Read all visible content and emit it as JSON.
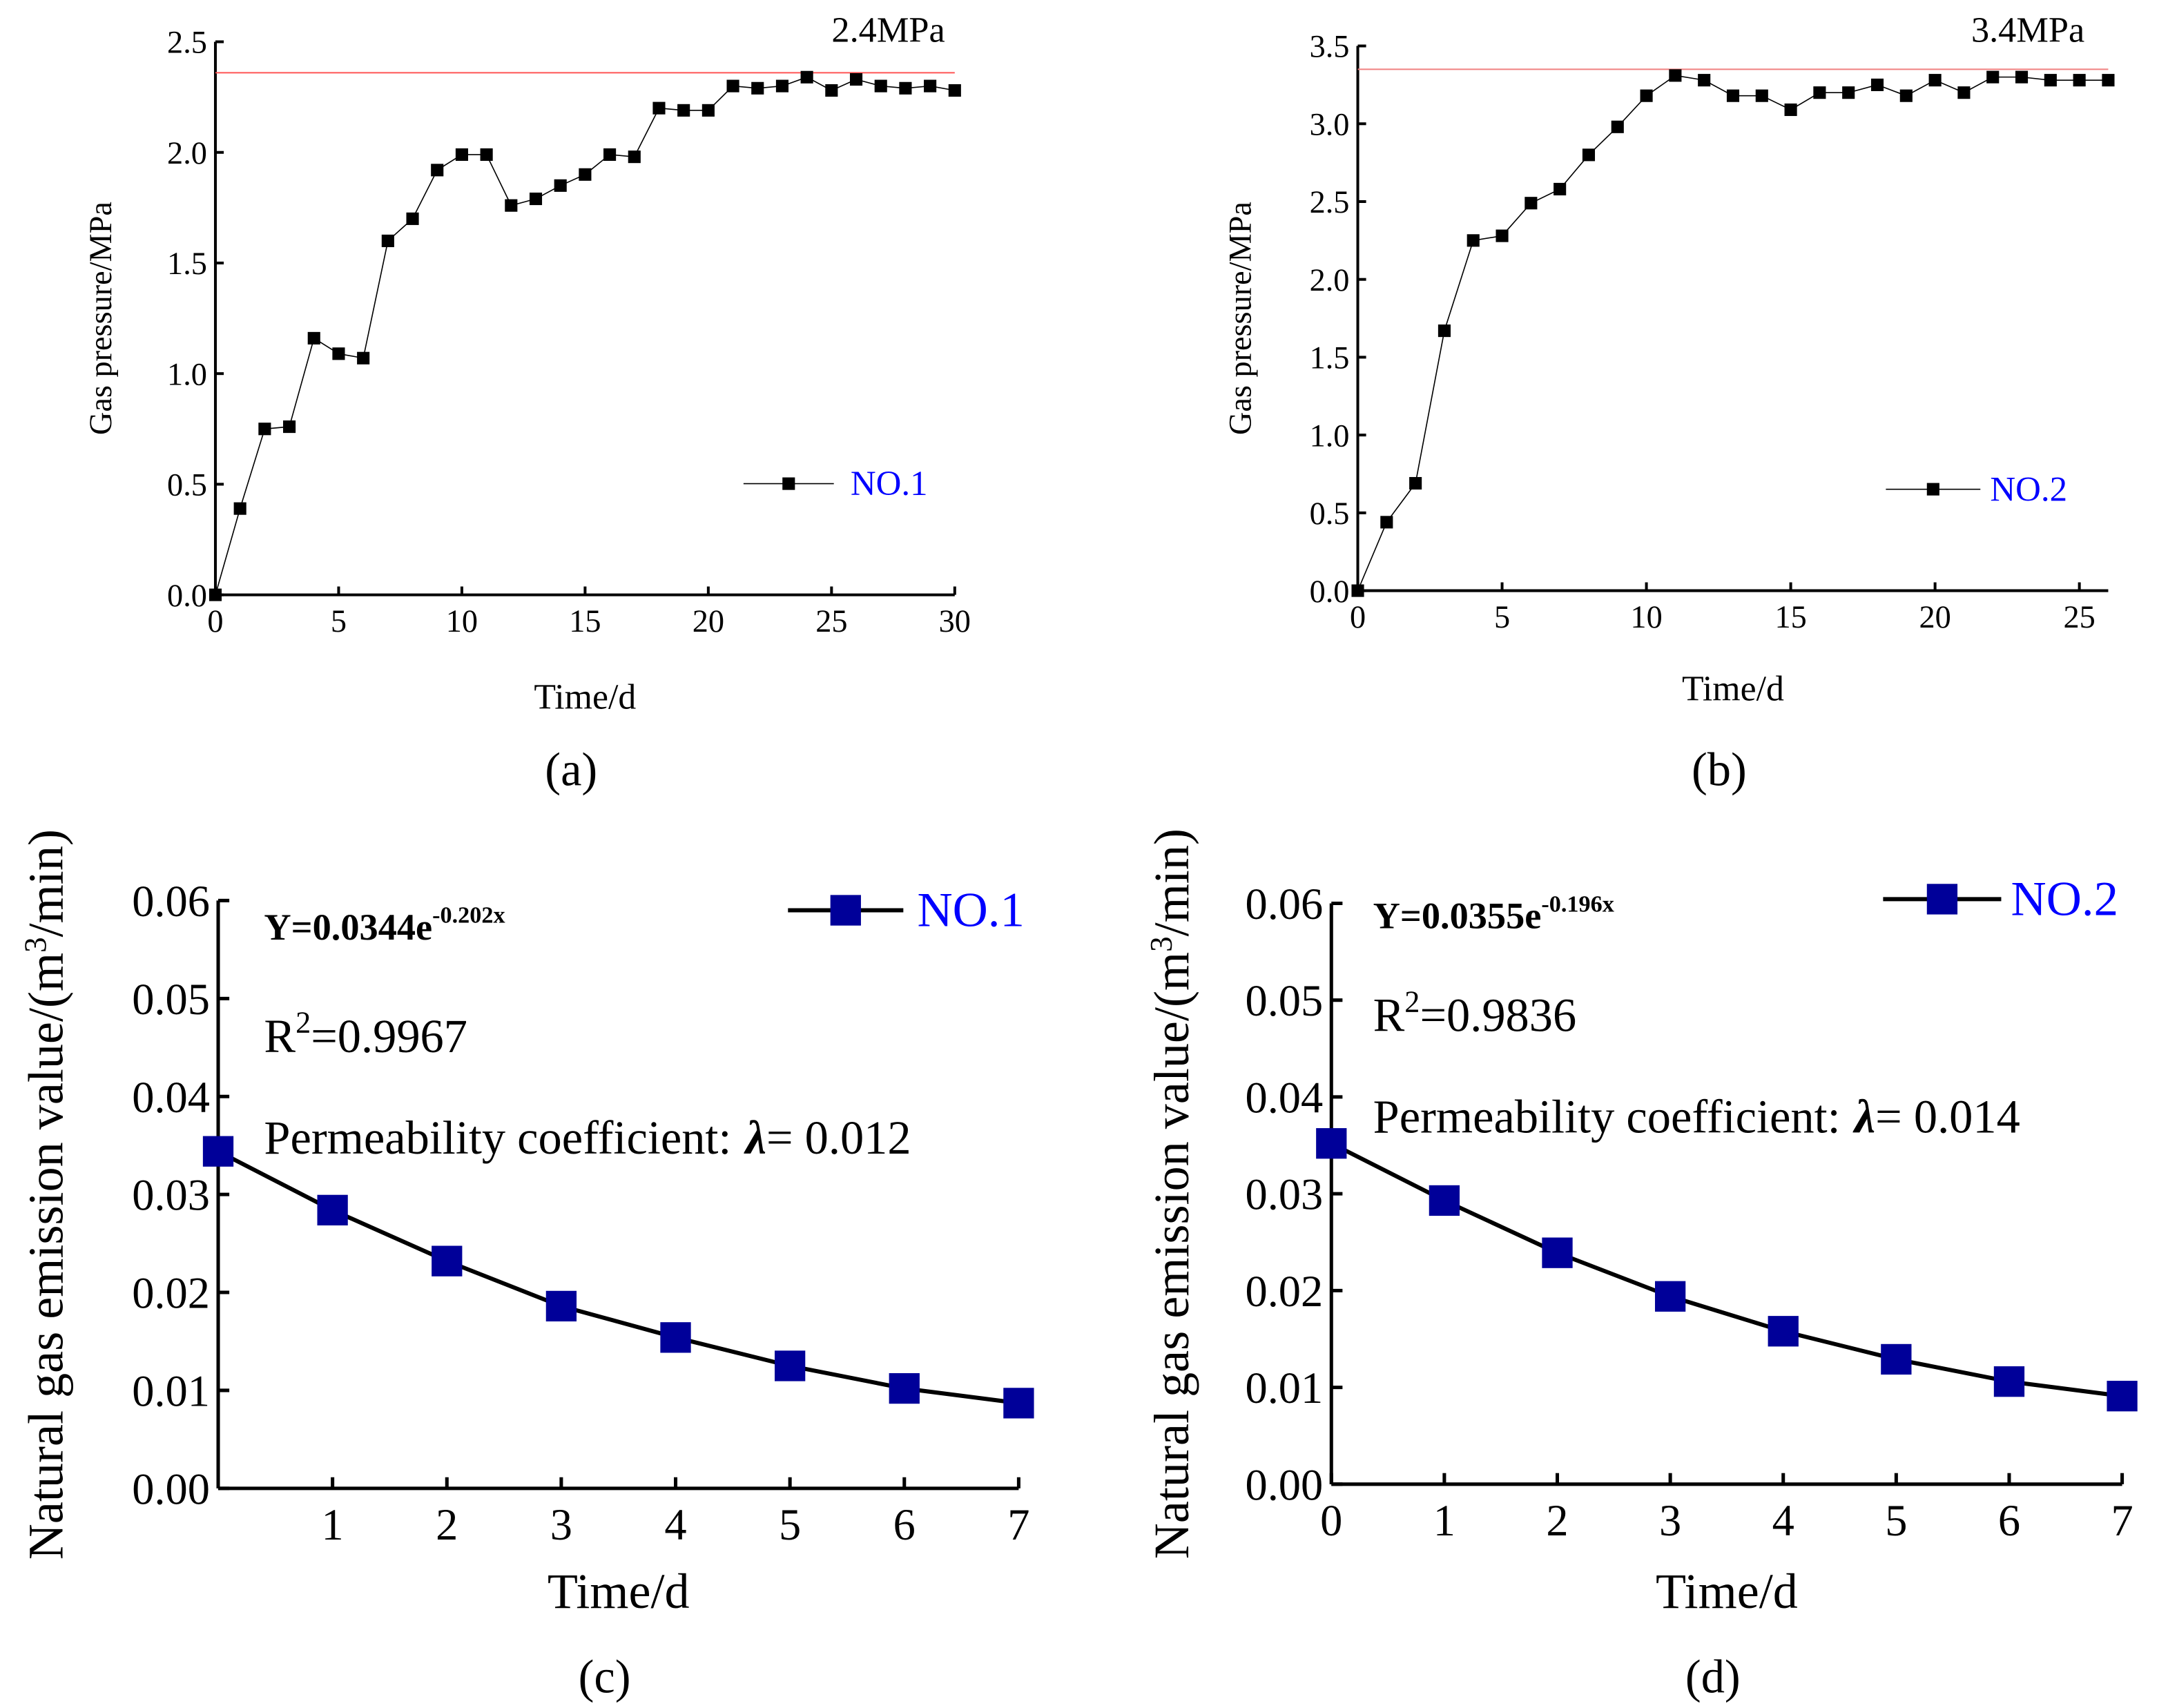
{
  "chart_data": [
    {
      "id": "a",
      "type": "line",
      "panel_label": "(a)",
      "xlabel": "Time/d",
      "ylabel": "Gas pressure/MPa",
      "xlim": [
        0,
        30
      ],
      "ylim": [
        0,
        2.5
      ],
      "xticks": [
        0,
        5,
        10,
        15,
        20,
        25,
        30
      ],
      "yticks": [
        0.0,
        0.5,
        1.0,
        1.5,
        2.0,
        2.5
      ],
      "ytick_labels": [
        "0.0",
        "0.5",
        "1.0",
        "1.5",
        "2.0",
        "2.5"
      ],
      "reference_line": {
        "value": 2.36,
        "label": "2.4MPa",
        "color": "#ff5555"
      },
      "legend": {
        "label": "NO.1",
        "placement": "center-right",
        "color": "#0000ff"
      },
      "series": [
        {
          "name": "NO.1",
          "x": [
            0,
            1,
            2,
            3,
            4,
            5,
            6,
            7,
            8,
            9,
            10,
            11,
            12,
            13,
            14,
            15,
            16,
            17,
            18,
            19,
            20,
            21,
            22,
            23,
            24,
            25,
            26,
            27,
            28,
            29,
            30
          ],
          "values": [
            0,
            0.39,
            0.75,
            0.76,
            1.16,
            1.09,
            1.07,
            1.6,
            1.7,
            1.92,
            1.99,
            1.99,
            1.76,
            1.79,
            1.85,
            1.9,
            1.99,
            1.98,
            2.2,
            2.19,
            2.19,
            2.3,
            2.29,
            2.3,
            2.34,
            2.28,
            2.33,
            2.3,
            2.29,
            2.3,
            2.28
          ],
          "color": "#000000"
        }
      ]
    },
    {
      "id": "b",
      "type": "line",
      "panel_label": "(b)",
      "xlabel": "Time/d",
      "ylabel": "Gas pressure/MPa",
      "xlim": [
        0,
        26
      ],
      "ylim": [
        0,
        3.5
      ],
      "xticks": [
        0,
        5,
        10,
        15,
        20,
        25
      ],
      "yticks": [
        0.0,
        0.5,
        1.0,
        1.5,
        2.0,
        2.5,
        3.0,
        3.5
      ],
      "ytick_labels": [
        "0.0",
        "0.5",
        "1.0",
        "1.5",
        "2.0",
        "2.5",
        "3.0",
        "3.5"
      ],
      "reference_line": {
        "value": 3.35,
        "label": "3.4MPa",
        "color": "#f08080"
      },
      "legend": {
        "label": "NO.2",
        "placement": "center-right",
        "color": "#0000ff"
      },
      "series": [
        {
          "name": "NO.2",
          "x": [
            0,
            1,
            2,
            3,
            4,
            5,
            6,
            7,
            8,
            9,
            10,
            11,
            12,
            13,
            14,
            15,
            16,
            17,
            18,
            19,
            20,
            21,
            22,
            23,
            24,
            25,
            26
          ],
          "values": [
            0,
            0.44,
            0.69,
            1.67,
            2.25,
            2.28,
            2.49,
            2.58,
            2.8,
            2.98,
            3.18,
            3.31,
            3.28,
            3.18,
            3.18,
            3.09,
            3.2,
            3.2,
            3.25,
            3.18,
            3.28,
            3.2,
            3.3,
            3.3,
            3.28,
            3.28,
            3.28
          ],
          "color": "#000000"
        }
      ]
    },
    {
      "id": "c",
      "type": "line",
      "panel_label": "(c)",
      "xlabel": "Time/d",
      "ylabel_main": "Natural gas emission value/(m",
      "ylabel_sup": "3",
      "ylabel_end": "/min)",
      "xlim": [
        0,
        7
      ],
      "ylim": [
        0,
        0.06
      ],
      "xticks": [
        1,
        2,
        3,
        4,
        5,
        6,
        7
      ],
      "yticks": [
        0,
        0.01,
        0.02,
        0.03,
        0.04,
        0.05,
        0.06
      ],
      "ytick_labels": [
        "0.00",
        "0.01",
        "0.02",
        "0.03",
        "0.04",
        "0.05",
        "0.06"
      ],
      "fit": {
        "base": "Y=0.0344e",
        "exponent": "-0.202x"
      },
      "r2": {
        "r": "R",
        "sup": "2",
        "value": "=0.9967"
      },
      "permeability": {
        "label": "Permeability coefficient:",
        "symbol": "λ",
        "value": "= 0.012"
      },
      "legend": {
        "label": "NO.1",
        "placement": "top-right",
        "color": "#0000ff"
      },
      "series": [
        {
          "name": "NO.1",
          "x": [
            0,
            1,
            2,
            3,
            4,
            5,
            6,
            7
          ],
          "values": [
            0.0344,
            0.0284,
            0.0232,
            0.0186,
            0.0154,
            0.0125,
            0.0102,
            0.0087
          ],
          "color": "#000099"
        }
      ]
    },
    {
      "id": "d",
      "type": "line",
      "panel_label": "(d)",
      "xlabel": "Time/d",
      "ylabel_main": "Natural gas emission value/(m",
      "ylabel_sup": "3",
      "ylabel_end": "/min)",
      "xlim": [
        0,
        7
      ],
      "ylim": [
        0,
        0.06
      ],
      "xticks": [
        0,
        1,
        2,
        3,
        4,
        5,
        6,
        7
      ],
      "yticks": [
        0,
        0.01,
        0.02,
        0.03,
        0.04,
        0.05,
        0.06
      ],
      "ytick_labels": [
        "0.00",
        "0.01",
        "0.02",
        "0.03",
        "0.04",
        "0.05",
        "0.06"
      ],
      "fit": {
        "base": "Y=0.0355e",
        "exponent": "-0.196x"
      },
      "r2": {
        "r": "R",
        "sup": "2",
        "value": "=0.9836"
      },
      "permeability": {
        "label": "Permeability coefficient:",
        "symbol": "λ",
        "value": "= 0.014"
      },
      "legend": {
        "label": "NO.2",
        "placement": "top-right",
        "color": "#0000ff"
      },
      "series": [
        {
          "name": "NO.2",
          "x": [
            0,
            1,
            2,
            3,
            4,
            5,
            6,
            7
          ],
          "values": [
            0.0352,
            0.0293,
            0.0239,
            0.0194,
            0.0158,
            0.0129,
            0.0106,
            0.0091
          ],
          "color": "#000099"
        }
      ]
    }
  ]
}
